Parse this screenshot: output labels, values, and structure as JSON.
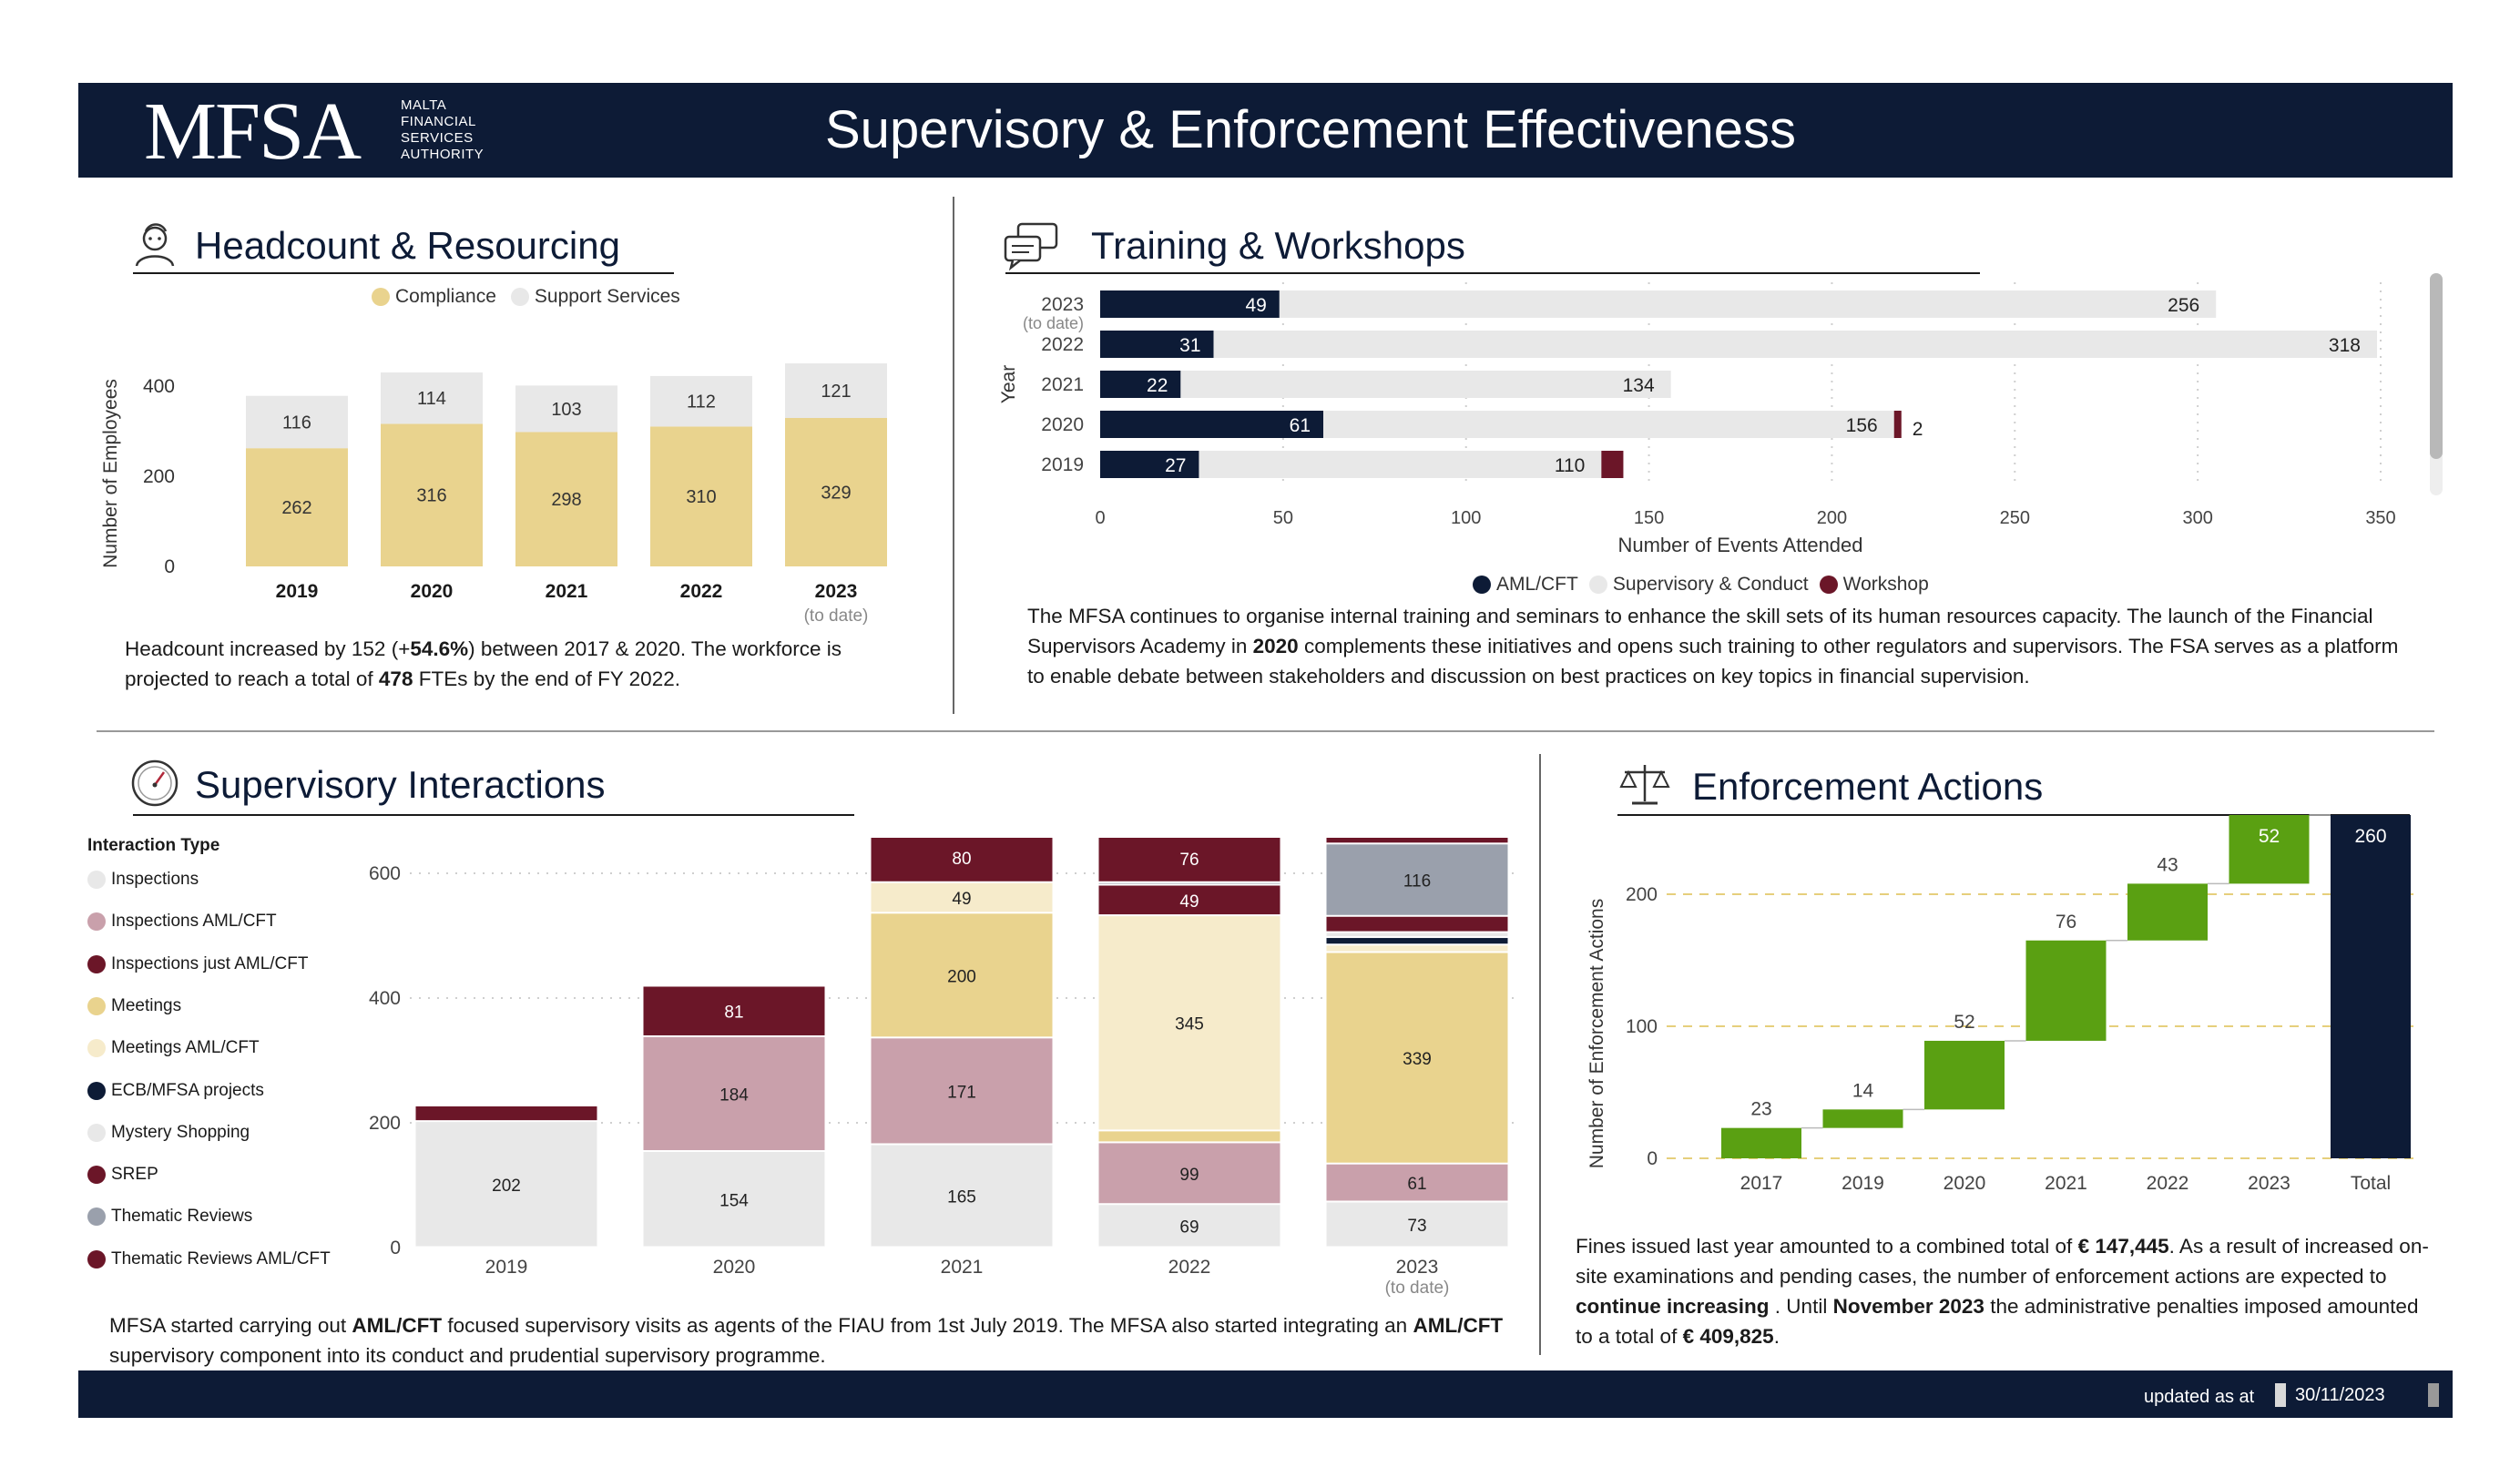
{
  "header": {
    "logo": "MFSA",
    "logo_sub": [
      "MALTA",
      "FINANCIAL",
      "SERVICES",
      "AUTHORITY"
    ],
    "title": "Supervisory & Enforcement Effectiveness"
  },
  "headcount": {
    "title": "Headcount & Resourcing",
    "legend": [
      "Compliance",
      "Support Services"
    ],
    "text_parts": [
      "Headcount increased by 152 (+",
      "54.6%",
      ") between 2017 & 2020. The workforce is projected to reach a total of ",
      "478",
      " FTEs by the end of FY 2022."
    ]
  },
  "training": {
    "title": "Training & Workshops",
    "legend": [
      "AML/CFT",
      "Supervisory & Conduct",
      "Workshop"
    ],
    "text_parts": [
      "The MFSA continues to organise internal training and seminars to enhance the skill sets of its human resources capacity. The launch of the Financial Supervisors Academy in ",
      "2020",
      " complements these initiatives and opens such training to other regulators and supervisors. The FSA serves as a platform to enable debate between stakeholders and discussion on best practices on key topics in financial supervision."
    ]
  },
  "interactions": {
    "title": "Supervisory Interactions",
    "legend_title": "Interaction Type",
    "text_parts": [
      "MFSA started carrying out ",
      "AML/CFT",
      " focused supervisory visits as agents of the FIAU from 1st July 2019. The MFSA also started integrating an ",
      "AML/CFT",
      " supervisory component into its conduct and prudential supervisory programme."
    ]
  },
  "enforcement": {
    "title": "Enforcement Actions",
    "text_parts": [
      "Fines issued last year amounted to a combined total of ",
      "€ 147,445",
      ". As a result of increased on-site examinations and pending cases, the number of enforcement actions are expected to ",
      "continue increasing",
      " . Until ",
      "November 2023",
      " the administrative penalties imposed amounted to a total of ",
      "€ 409,825",
      "."
    ]
  },
  "footer": {
    "updated_label": "updated as at",
    "date": "30/11/2023"
  },
  "colors": {
    "navy": "#0d1b36",
    "compliance": "#e9d38e",
    "support": "#e8e8e8",
    "workshop": "#6b1628",
    "inspections_aml": "#c9a0ab",
    "meetings_aml": "#f6ebcb",
    "thematic": "#9aa0ac",
    "green": "#5aa012"
  },
  "chart_data": [
    {
      "id": "headcount",
      "type": "bar",
      "stacked": true,
      "categories": [
        "2019",
        "2020",
        "2021",
        "2022",
        "2023"
      ],
      "category_notes": [
        "",
        "",
        "",
        "",
        "(to date)"
      ],
      "series": [
        {
          "name": "Compliance",
          "values": [
            262,
            316,
            298,
            310,
            329
          ]
        },
        {
          "name": "Support Services",
          "values": [
            116,
            114,
            103,
            112,
            121
          ]
        }
      ],
      "ylabel": "Number of Employees",
      "yticks": [
        0,
        200,
        400
      ],
      "ylim": [
        0,
        440
      ],
      "legend_position": "top"
    },
    {
      "id": "training",
      "type": "bar",
      "orientation": "horizontal",
      "stacked": true,
      "categories": [
        "2023",
        "2022",
        "2021",
        "2020",
        "2019"
      ],
      "category_notes": [
        "(to date)",
        "",
        "",
        "",
        ""
      ],
      "series": [
        {
          "name": "AML/CFT",
          "values": [
            49,
            31,
            22,
            61,
            27
          ]
        },
        {
          "name": "Supervisory & Conduct",
          "values": [
            256,
            318,
            134,
            156,
            110
          ]
        },
        {
          "name": "Workshop",
          "values": [
            0,
            0,
            0,
            2,
            6
          ]
        }
      ],
      "data_labels": {
        "AML/CFT": [
          "49",
          "31",
          "22",
          "61",
          "27"
        ],
        "Supervisory & Conduct": [
          "256",
          "318",
          "134",
          "156",
          "110"
        ],
        "Workshop": [
          "",
          "",
          "",
          "2",
          ""
        ]
      },
      "xlabel": "Number of Events Attended",
      "ylabel": "Year",
      "xticks": [
        0,
        50,
        100,
        150,
        200,
        250,
        300,
        350
      ],
      "xlim": [
        0,
        350
      ],
      "legend_position": "bottom"
    },
    {
      "id": "interactions",
      "type": "bar",
      "stacked": true,
      "categories": [
        "2019",
        "2020",
        "2021",
        "2022",
        "2023"
      ],
      "category_notes": [
        "",
        "",
        "",
        "",
        "(to date)"
      ],
      "series": [
        {
          "name": "Inspections",
          "values": [
            202,
            154,
            165,
            69,
            73
          ]
        },
        {
          "name": "Inspections  AML/CFT",
          "values": [
            0,
            184,
            171,
            99,
            61
          ]
        },
        {
          "name": "Inspections just AML/CFT",
          "values": [
            0,
            0,
            0,
            0,
            0
          ]
        },
        {
          "name": "Meetings",
          "values": [
            0,
            0,
            200,
            19,
            339
          ]
        },
        {
          "name": "Meetings  AML/CFT",
          "values": [
            0,
            0,
            49,
            345,
            12
          ]
        },
        {
          "name": "ECB/MFSA projects",
          "values": [
            0,
            0,
            0,
            0,
            12
          ]
        },
        {
          "name": "Mystery Shopping",
          "values": [
            0,
            0,
            0,
            0,
            8
          ]
        },
        {
          "name": "SREP",
          "values": [
            25,
            81,
            80,
            49,
            26
          ]
        },
        {
          "name": "Thematic Reviews",
          "values": [
            0,
            0,
            0,
            4,
            116
          ]
        },
        {
          "name": "Thematic Reviews   AML/CFT",
          "values": [
            0,
            0,
            0,
            76,
            20
          ]
        }
      ],
      "data_labels": {
        "Inspections": [
          "202",
          "154",
          "165",
          "69",
          "73"
        ],
        "Inspections  AML/CFT": [
          "",
          "184",
          "171",
          "99",
          "61"
        ],
        "Meetings": [
          "",
          "",
          "200",
          "",
          "339"
        ],
        "Meetings  AML/CFT": [
          "",
          "",
          "49",
          "345",
          ""
        ],
        "SREP": [
          "",
          "81",
          "80",
          "49",
          ""
        ],
        "Thematic Reviews": [
          "",
          "",
          "",
          "",
          "116"
        ],
        "Thematic Reviews   AML/CFT": [
          "",
          "",
          "",
          "76",
          ""
        ]
      },
      "yticks": [
        0,
        200,
        400,
        600
      ],
      "ylim": [
        0,
        660
      ],
      "legend_position": "left"
    },
    {
      "id": "enforcement",
      "type": "waterfall",
      "categories": [
        "2017",
        "2019",
        "2020",
        "2021",
        "2022",
        "2023",
        "Total"
      ],
      "values": [
        23,
        14,
        52,
        76,
        43,
        52,
        260
      ],
      "ylabel": "Number of Enforcement Actions",
      "yticks": [
        0,
        100,
        200
      ],
      "ylim": [
        0,
        260
      ]
    }
  ]
}
